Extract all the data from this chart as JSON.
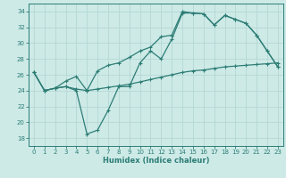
{
  "xlabel": "Humidex (Indice chaleur)",
  "bg_color": "#cdeae7",
  "line_color": "#2d7d75",
  "grid_color": "#b5d8d4",
  "ylim": [
    17,
    35
  ],
  "xlim": [
    -0.5,
    23.5
  ],
  "yticks": [
    18,
    20,
    22,
    24,
    26,
    28,
    30,
    32,
    34
  ],
  "xticks": [
    0,
    1,
    2,
    3,
    4,
    5,
    6,
    7,
    8,
    9,
    10,
    11,
    12,
    13,
    14,
    15,
    16,
    17,
    18,
    19,
    20,
    21,
    22,
    23
  ],
  "line1_y": [
    26.3,
    24.0,
    24.3,
    24.5,
    24.0,
    18.5,
    19.0,
    21.5,
    24.5,
    24.5,
    27.5,
    29.0,
    28.0,
    30.5,
    33.8,
    33.8,
    33.7,
    32.3,
    33.5,
    33.0,
    32.5,
    31.0,
    29.0,
    27.0
  ],
  "line2_y": [
    26.3,
    24.0,
    24.3,
    25.2,
    25.8,
    24.0,
    26.5,
    27.2,
    27.5,
    28.2,
    29.0,
    29.5,
    30.8,
    31.0,
    34.0,
    33.8,
    33.7,
    32.3,
    33.5,
    33.0,
    32.5,
    31.0,
    29.0,
    27.0
  ],
  "line3_y": [
    26.3,
    24.0,
    24.3,
    24.5,
    24.2,
    24.0,
    24.2,
    24.4,
    24.6,
    24.8,
    25.1,
    25.4,
    25.7,
    26.0,
    26.3,
    26.5,
    26.6,
    26.8,
    27.0,
    27.1,
    27.2,
    27.3,
    27.4,
    27.5
  ]
}
